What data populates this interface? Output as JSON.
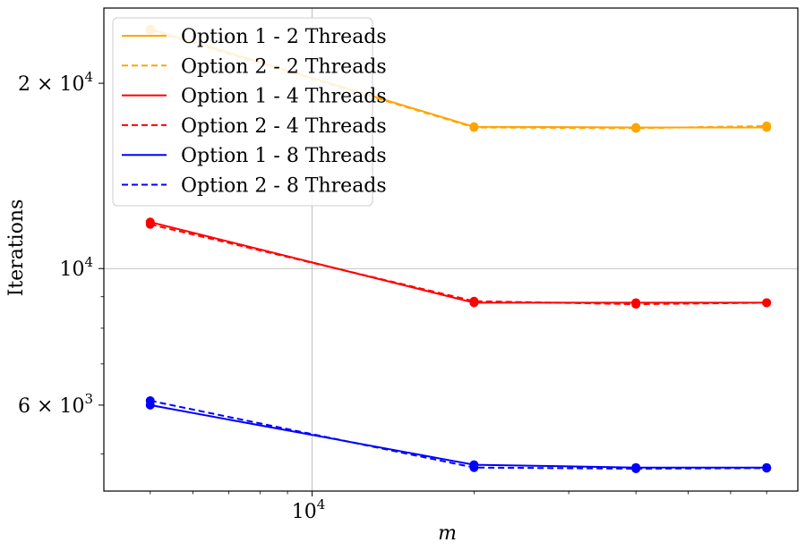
{
  "chart_data": {
    "type": "line",
    "xlabel": "m",
    "ylabel": "Iterations",
    "xscale": "log",
    "yscale": "log",
    "xlim": [
      4100,
      80000
    ],
    "ylim": [
      4350,
      26500
    ],
    "grid": "major",
    "legend_position": "top-left",
    "x_ticks": [
      {
        "value": 10000,
        "base": "10",
        "exp": "4"
      }
    ],
    "y_ticks": [
      {
        "value": 6000,
        "mant": "6 × 10",
        "exp": "3"
      },
      {
        "value": 10000,
        "mant": "10",
        "exp": "4"
      },
      {
        "value": 20000,
        "mant": "2 × 10",
        "exp": "4"
      }
    ],
    "x": [
      5000,
      20000,
      40000,
      70000
    ],
    "series": [
      {
        "name": "Option 1 - 2 Threads",
        "color": "#ffa500",
        "style": "solid",
        "values": [
          24500,
          17000,
          16950,
          16950
        ]
      },
      {
        "name": "Option 2 - 2 Threads",
        "color": "#ffa500",
        "style": "dashed",
        "values": [
          24400,
          16950,
          16900,
          17050
        ]
      },
      {
        "name": "Option 1 - 4 Threads",
        "color": "#ff0000",
        "style": "solid",
        "values": [
          11900,
          8800,
          8800,
          8800
        ]
      },
      {
        "name": "Option 2 - 4 Threads",
        "color": "#ff0000",
        "style": "dashed",
        "values": [
          11800,
          8850,
          8750,
          8800
        ]
      },
      {
        "name": "Option 1 - 8 Threads",
        "color": "#0000ff",
        "style": "solid",
        "values": [
          6000,
          4800,
          4750,
          4750
        ]
      },
      {
        "name": "Option 2 - 8 Threads",
        "color": "#0000ff",
        "style": "dashed",
        "values": [
          6100,
          4750,
          4730,
          4740
        ]
      }
    ]
  }
}
